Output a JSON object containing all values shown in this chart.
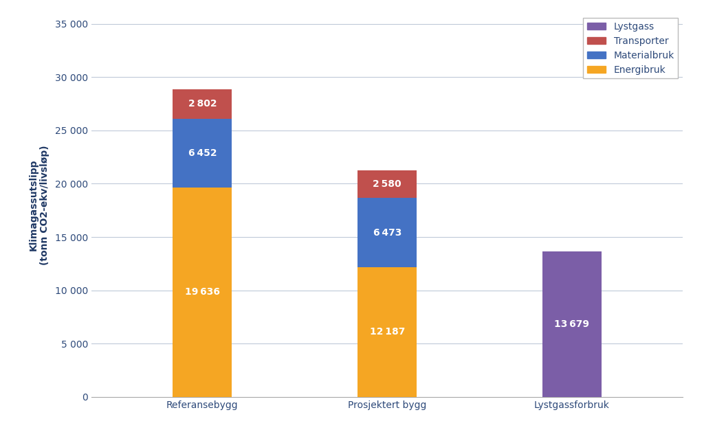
{
  "categories": [
    "Referansebygg",
    "Prosjektert bygg",
    "Lystgassforbruk"
  ],
  "energibruk": [
    19636,
    12187,
    0
  ],
  "materialbruk": [
    6452,
    6473,
    0
  ],
  "transporter": [
    2802,
    2580,
    0
  ],
  "lystgass": [
    0,
    0,
    13679
  ],
  "colors": {
    "Energibruk": "#F5A623",
    "Materialbruk": "#4472C4",
    "Transporter": "#C0504D",
    "Lystgass": "#7B5EA7"
  },
  "ylabel_line1": "Klimagassutslipp",
  "ylabel_line2": "(tonn CO2-ekv/livsløp)",
  "ylim": [
    0,
    36000
  ],
  "yticks": [
    0,
    5000,
    10000,
    15000,
    20000,
    25000,
    30000,
    35000
  ],
  "ytick_labels": [
    "0",
    "5 000",
    "10 000",
    "15 000",
    "20 000",
    "25 000",
    "30 000",
    "35 000"
  ],
  "label_fontsize": 10,
  "tick_fontsize": 10,
  "legend_fontsize": 10,
  "bar_width": 0.32,
  "background_color": "#FFFFFF",
  "grid_color": "#BFC9D9",
  "text_color": "#FFFFFF",
  "annotation_fontsize": 10,
  "ylabel_color": "#1F3864",
  "tick_color": "#2E4A7A",
  "xlabel_color": "#2E4A7A"
}
